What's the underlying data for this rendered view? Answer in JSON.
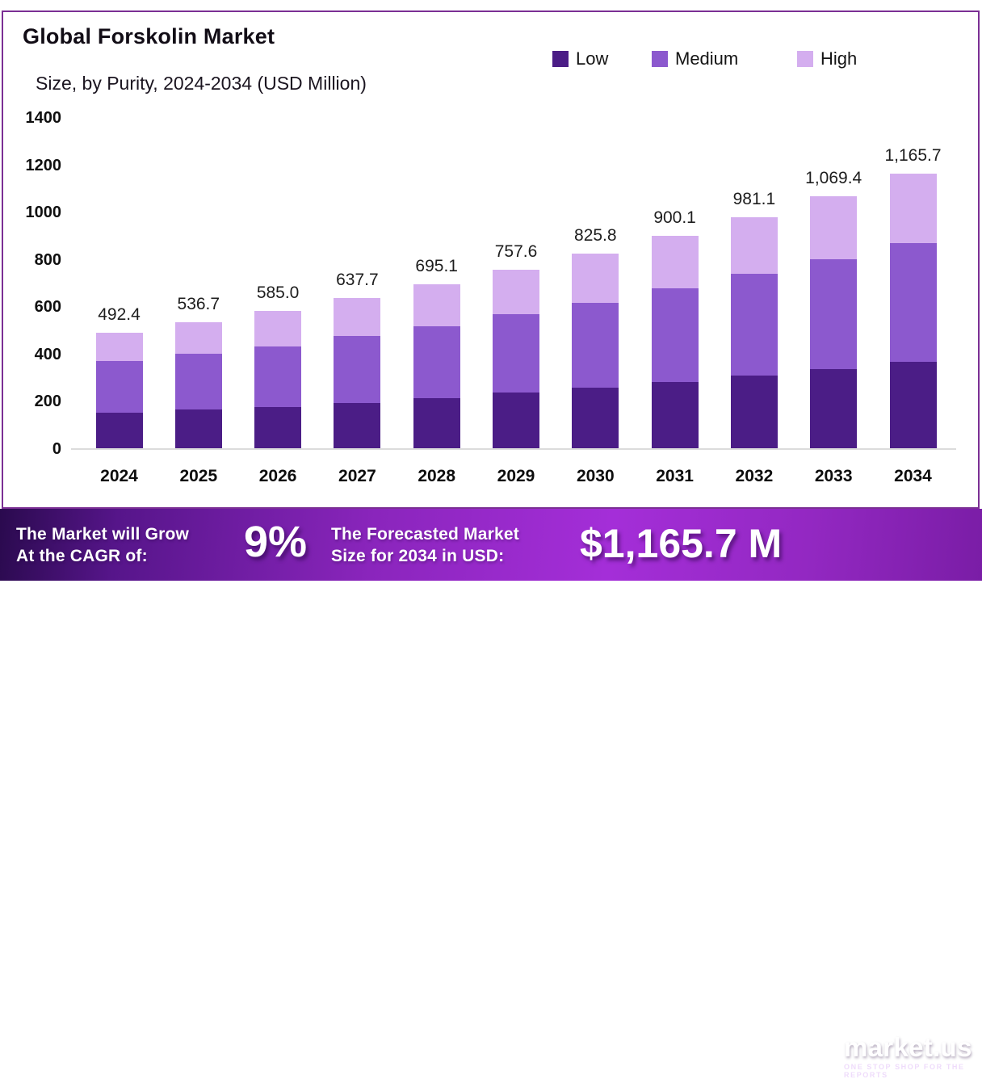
{
  "header": {
    "title": "Global Forskolin Market",
    "subtitle": "Size, by Purity, 2024-2034 (USD Million)"
  },
  "chart_data": {
    "type": "bar",
    "stacked": true,
    "title": "Global Forskolin Market Size, by Purity, 2024-2034 (USD Million)",
    "xlabel": "",
    "ylabel": "",
    "units": "USD Million",
    "ylim": [
      0,
      1400
    ],
    "y_ticks": [
      0,
      200,
      400,
      600,
      800,
      1000,
      1200,
      1400
    ],
    "grid": false,
    "legend_position": "top-right",
    "categories": [
      "2024",
      "2025",
      "2026",
      "2027",
      "2028",
      "2029",
      "2030",
      "2031",
      "2032",
      "2033",
      "2034"
    ],
    "series": [
      {
        "name": "Low",
        "color": "#4b1d86",
        "values": [
          153.0,
          167.0,
          179.0,
          195.0,
          215.0,
          238.0,
          260.0,
          283.0,
          311.0,
          338.0,
          368.0
        ]
      },
      {
        "name": "Medium",
        "color": "#8c59ce",
        "values": [
          219.3,
          236.3,
          256.0,
          282.0,
          302.8,
          333.0,
          358.8,
          397.4,
          430.7,
          464.9,
          504.0
        ]
      },
      {
        "name": "High",
        "color": "#d4aeef",
        "values": [
          120.1,
          133.4,
          150.0,
          160.7,
          177.3,
          186.6,
          207.0,
          219.7,
          239.4,
          266.5,
          293.7
        ]
      }
    ],
    "totals": [
      492.4,
      536.7,
      585.0,
      637.7,
      695.1,
      757.6,
      825.8,
      900.1,
      981.1,
      1069.4,
      1165.7
    ],
    "total_labels": [
      "492.4",
      "536.7",
      "585.0",
      "637.7",
      "695.1",
      "757.6",
      "825.8",
      "900.1",
      "981.1",
      "1,069.4",
      "1,165.7"
    ]
  },
  "footer": {
    "cagr_label_line1": "The Market will Grow",
    "cagr_label_line2": "At the CAGR of:",
    "cagr_value": "9%",
    "forecast_label_line1": "The Forecasted Market",
    "forecast_label_line2": "Size for 2034 in USD:",
    "forecast_value": "$1,165.7 M",
    "brand": {
      "name": "market.us",
      "tagline": "ONE STOP SHOP FOR THE REPORTS"
    }
  },
  "colors": {
    "card_border": "#7b2f94",
    "axis_line": "#dcdcdc",
    "banner_dark": "#2a0a4e",
    "banner_bright": "#a42ed8",
    "text_dark": "#141414",
    "text_light": "#ffffff"
  }
}
